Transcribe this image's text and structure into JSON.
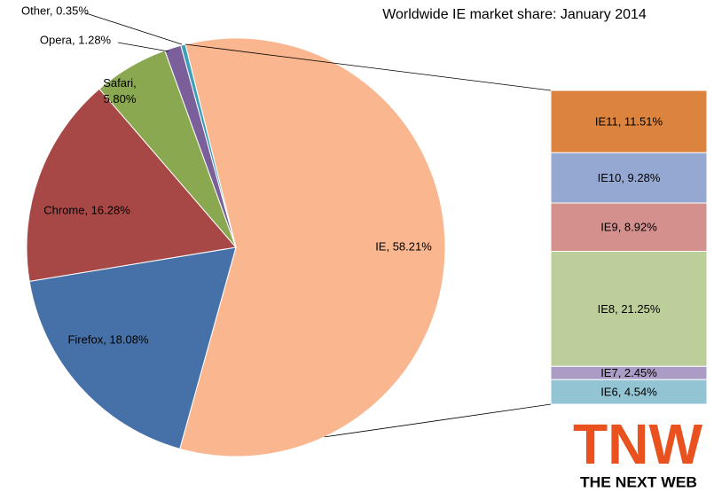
{
  "chart_data": {
    "type": "pie",
    "title": "Worldwide IE market share: January 2014",
    "values": [
      58.21,
      18.08,
      16.28,
      5.8,
      1.28,
      0.35
    ],
    "value_labels": [
      "IE, 58.21%",
      "Firefox, 18.08%",
      "Chrome, 16.28%",
      "Safari, 5.80%",
      "Opera, 1.28%",
      "Other, 0.35%"
    ],
    "colors": [
      "#f9b68f",
      "#4671a8",
      "#a74846",
      "#8aa84f",
      "#7b5f9b",
      "#3c9fb8"
    ],
    "breakdown": {
      "values": [
        11.51,
        9.28,
        8.92,
        21.25,
        2.45,
        4.54
      ],
      "value_labels": [
        "IE11, 11.51%",
        "IE10, 9.28%",
        "IE9, 8.92%",
        "IE8, 21.25%",
        "IE7, 2.45%",
        "IE6, 4.54%"
      ],
      "colors": [
        "#dc843e",
        "#94a8d1",
        "#d3908d",
        "#bccf9b",
        "#ab9cc5",
        "#93c4d4"
      ]
    }
  },
  "logo": {
    "mark": "TNW",
    "text": "THE NEXT WEB"
  }
}
